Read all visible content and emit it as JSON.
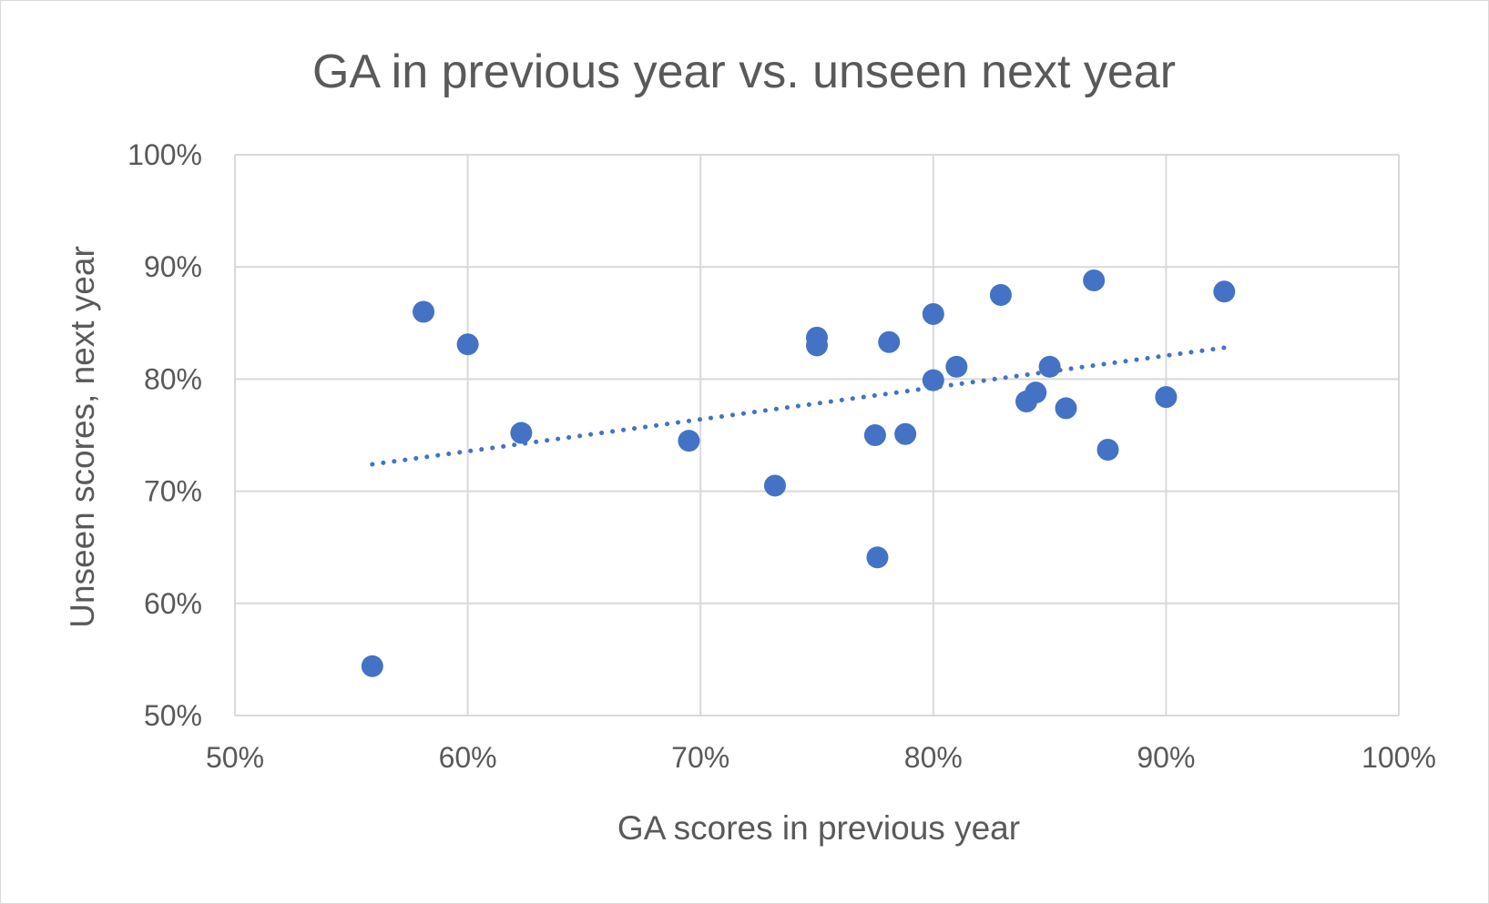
{
  "chart_data": {
    "type": "scatter",
    "title": "GA in previous year vs. unseen next year",
    "xlabel": "GA scores in previous year",
    "ylabel": "Unseen scores, next year",
    "xlim": [
      0.5,
      1.0
    ],
    "ylim": [
      0.5,
      1.0
    ],
    "x_ticks": [
      0.5,
      0.6,
      0.7,
      0.8,
      0.9,
      1.0
    ],
    "y_ticks": [
      0.5,
      0.6,
      0.7,
      0.8,
      0.9,
      1.0
    ],
    "x_tick_labels": [
      "50%",
      "60%",
      "70%",
      "80%",
      "90%",
      "100%"
    ],
    "y_tick_labels": [
      "50%",
      "60%",
      "70%",
      "80%",
      "90%",
      "100%"
    ],
    "grid": true,
    "legend": "none",
    "series": [
      {
        "color": "#4472c4",
        "x": [
          0.559,
          0.581,
          0.6,
          0.623,
          0.695,
          0.732,
          0.75,
          0.75,
          0.775,
          0.776,
          0.781,
          0.788,
          0.8,
          0.8,
          0.81,
          0.829,
          0.84,
          0.844,
          0.85,
          0.857,
          0.869,
          0.875,
          0.9,
          0.925
        ],
        "y": [
          0.544,
          0.86,
          0.831,
          0.752,
          0.745,
          0.705,
          0.837,
          0.83,
          0.75,
          0.641,
          0.833,
          0.751,
          0.858,
          0.799,
          0.811,
          0.875,
          0.78,
          0.788,
          0.811,
          0.774,
          0.888,
          0.737,
          0.784,
          0.878
        ]
      }
    ],
    "trendline": {
      "kind": "linear",
      "style": "dotted",
      "color": "#4472c4",
      "x_start": 0.559,
      "y_start": 0.724,
      "x_end": 0.925,
      "y_end": 0.828
    }
  }
}
